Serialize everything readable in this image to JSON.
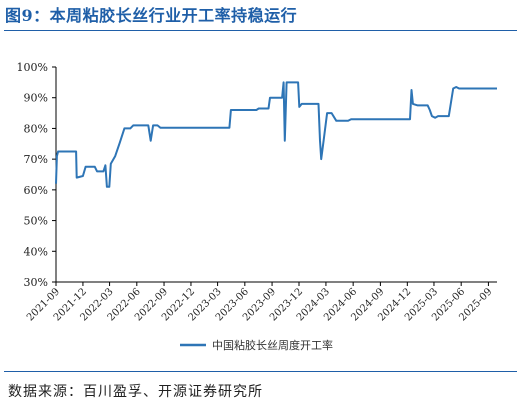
{
  "figure": {
    "title": "图9：本周粘胶长丝行业开工率持稳运行",
    "source": "数据来源：百川盈孚、开源证券研究所"
  },
  "chart_data": {
    "type": "line",
    "y_ticks": [
      "30%",
      "40%",
      "50%",
      "60%",
      "70%",
      "80%",
      "90%",
      "100%"
    ],
    "ylim": [
      30,
      100
    ],
    "x_ticks": [
      "2021-09",
      "2021-12",
      "2022-03",
      "2022-06",
      "2022-09",
      "2022-12",
      "2023-03",
      "2023-06",
      "2023-09",
      "2023-12",
      "2024-03",
      "2024-06",
      "2024-09",
      "2024-12",
      "2025-03",
      "2025-06",
      "2025-09"
    ],
    "xlim": [
      "2021-09-01",
      "2025-09-30"
    ],
    "grid": false,
    "legend_position": "bottom",
    "series": [
      {
        "name": "中国粘胶长丝周度开工率",
        "color": "#2e75b6",
        "points": [
          [
            "2021-09-01",
            62
          ],
          [
            "2021-09-04",
            71
          ],
          [
            "2021-09-08",
            72.5
          ],
          [
            "2021-10-01",
            72.5
          ],
          [
            "2021-11-08",
            72.5
          ],
          [
            "2021-11-10",
            64
          ],
          [
            "2021-12-01",
            64.5
          ],
          [
            "2021-12-10",
            67.5
          ],
          [
            "2022-01-10",
            67.5
          ],
          [
            "2022-01-18",
            66
          ],
          [
            "2022-02-08",
            66
          ],
          [
            "2022-02-15",
            68
          ],
          [
            "2022-02-20",
            61
          ],
          [
            "2022-02-28",
            61
          ],
          [
            "2022-03-05",
            68.5
          ],
          [
            "2022-03-20",
            71
          ],
          [
            "2022-04-05",
            75.5
          ],
          [
            "2022-04-20",
            80
          ],
          [
            "2022-05-10",
            80
          ],
          [
            "2022-05-20",
            81
          ],
          [
            "2022-07-10",
            81
          ],
          [
            "2022-07-18",
            76
          ],
          [
            "2022-07-26",
            81
          ],
          [
            "2022-08-10",
            81
          ],
          [
            "2022-08-20",
            80.2
          ],
          [
            "2023-04-10",
            80.2
          ],
          [
            "2023-04-15",
            86
          ],
          [
            "2023-07-10",
            86
          ],
          [
            "2023-07-18",
            86.5
          ],
          [
            "2023-08-20",
            86.5
          ],
          [
            "2023-08-25",
            90
          ],
          [
            "2023-10-05",
            90
          ],
          [
            "2023-10-10",
            95
          ],
          [
            "2023-10-14",
            76
          ],
          [
            "2023-10-20",
            95
          ],
          [
            "2023-11-28",
            95
          ],
          [
            "2023-12-02",
            87
          ],
          [
            "2023-12-10",
            88
          ],
          [
            "2024-02-05",
            88
          ],
          [
            "2024-02-10",
            76
          ],
          [
            "2024-02-14",
            70
          ],
          [
            "2024-02-22",
            76
          ],
          [
            "2024-03-05",
            85
          ],
          [
            "2024-03-20",
            85
          ],
          [
            "2024-04-05",
            82.5
          ],
          [
            "2024-05-15",
            82.5
          ],
          [
            "2024-05-25",
            83
          ],
          [
            "2024-12-10",
            83
          ],
          [
            "2024-12-15",
            92.5
          ],
          [
            "2024-12-20",
            88
          ],
          [
            "2025-01-05",
            87.5
          ],
          [
            "2025-02-08",
            87.5
          ],
          [
            "2025-02-15",
            86
          ],
          [
            "2025-02-22",
            84
          ],
          [
            "2025-03-05",
            83.5
          ],
          [
            "2025-03-15",
            84
          ],
          [
            "2025-04-20",
            84
          ],
          [
            "2025-05-05",
            93
          ],
          [
            "2025-05-15",
            93.5
          ],
          [
            "2025-05-25",
            93
          ],
          [
            "2025-09-30",
            93
          ]
        ]
      }
    ]
  }
}
